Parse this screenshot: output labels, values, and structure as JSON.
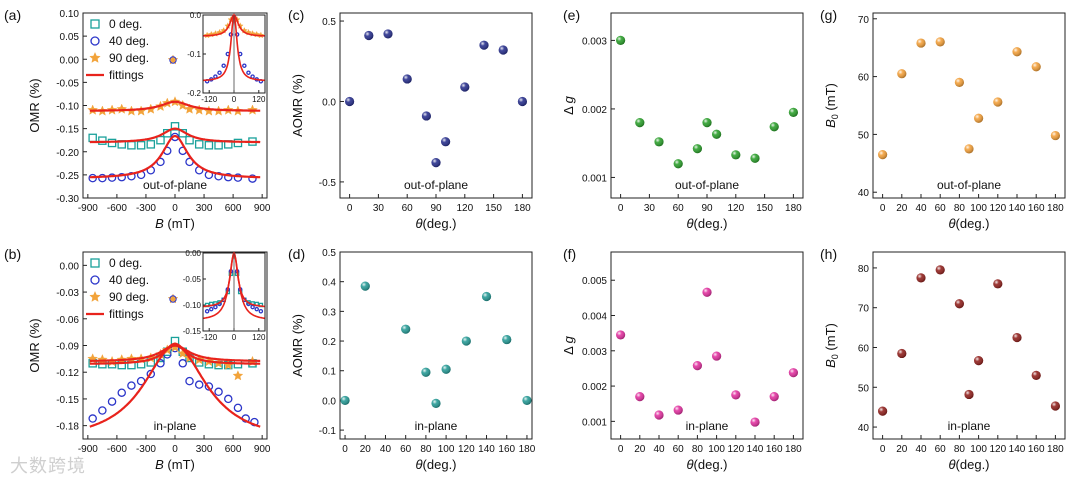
{
  "watermark": "大数跨境",
  "chart_data": [
    {
      "id": "a",
      "panel_label": "(a)",
      "type": "scatter",
      "xlabel_var": "B",
      "xlabel_unit": " (mT)",
      "ylabel": "OMR (%)",
      "xlim": [
        -950,
        950
      ],
      "ylim": [
        -0.3,
        0.1
      ],
      "xticks": [
        -900,
        -600,
        -300,
        0,
        300,
        600,
        900
      ],
      "xtick_labels": [
        "-900",
        "-600",
        "-300",
        "0",
        "300",
        "600",
        "900"
      ],
      "yticks": [
        0.1,
        0.05,
        0.0,
        -0.05,
        -0.1,
        -0.15,
        -0.2,
        -0.25,
        -0.3
      ],
      "ytick_labels": [
        "0.10",
        "0.05",
        "0.00",
        "-0.05",
        "-0.10",
        "-0.15",
        "-0.20",
        "-0.25",
        "-0.30"
      ],
      "annotation": "out-of-plane",
      "legend": [
        {
          "name": "0 deg.",
          "marker": "square",
          "color": "#1aa19b"
        },
        {
          "name": "40 deg.",
          "marker": "circle",
          "color": "#2b35c9"
        },
        {
          "name": "90 deg.",
          "marker": "star",
          "color": "#f2a33a"
        },
        {
          "name": "fittings",
          "marker": "line",
          "color": "#e8231c"
        }
      ],
      "series": [
        {
          "name": "0 deg.",
          "marker": "square",
          "color": "#1aa19b",
          "x": [
            -850,
            -750,
            -650,
            -550,
            -450,
            -350,
            -250,
            -150,
            -80,
            0,
            80,
            150,
            250,
            350,
            450,
            550,
            650,
            800
          ],
          "y": [
            -0.17,
            -0.176,
            -0.181,
            -0.184,
            -0.186,
            -0.186,
            -0.184,
            -0.175,
            -0.16,
            -0.145,
            -0.16,
            -0.175,
            -0.184,
            -0.186,
            -0.186,
            -0.184,
            -0.181,
            -0.178
          ]
        },
        {
          "name": "40 deg.",
          "marker": "circle",
          "color": "#2b35c9",
          "x": [
            -850,
            -750,
            -650,
            -550,
            -450,
            -350,
            -250,
            -150,
            -80,
            0,
            80,
            150,
            250,
            350,
            450,
            550,
            650,
            800
          ],
          "y": [
            -0.257,
            -0.257,
            -0.256,
            -0.255,
            -0.253,
            -0.25,
            -0.24,
            -0.222,
            -0.198,
            -0.168,
            -0.198,
            -0.222,
            -0.24,
            -0.25,
            -0.253,
            -0.255,
            -0.256,
            -0.258
          ]
        },
        {
          "name": "90 deg.",
          "marker": "star",
          "color": "#f2a33a",
          "x": [
            -850,
            -750,
            -650,
            -550,
            -450,
            -350,
            -250,
            -150,
            -80,
            0,
            80,
            150,
            250,
            350,
            450,
            550,
            650,
            800
          ],
          "y": [
            -0.11,
            -0.112,
            -0.11,
            -0.108,
            -0.112,
            -0.112,
            -0.108,
            -0.102,
            -0.095,
            -0.092,
            -0.1,
            -0.108,
            -0.11,
            -0.112,
            -0.112,
            -0.11,
            -0.112,
            -0.11
          ]
        }
      ],
      "fits": [
        {
          "base": -0.112,
          "amp": 0.02,
          "w": 180
        },
        {
          "base": -0.18,
          "amp": 0.03,
          "w": 160
        },
        {
          "base": -0.258,
          "amp": 0.092,
          "w": 160
        }
      ],
      "inset": {
        "xlim": [
          -150,
          150
        ],
        "ylim": [
          -0.2,
          0.0
        ],
        "xticks": [
          -120,
          0,
          120
        ],
        "xtick_labels": [
          "-120",
          "0",
          "120"
        ],
        "yticks": [
          0.0,
          -0.1,
          -0.2
        ],
        "ytick_labels": [
          "0.0",
          "-0.1",
          "-0.2"
        ],
        "fits": [
          {
            "base": -0.055,
            "amp": 0.055,
            "w": 25,
            "color": "#e8231c"
          },
          {
            "base": -0.17,
            "amp": 0.17,
            "w": 18,
            "color": "#e8231c"
          }
        ],
        "points": [
          {
            "marker": "star",
            "color": "#f2a33a",
            "x": [
              -130,
              -110,
              -90,
              -70,
              -50,
              -30,
              -15,
              15,
              30,
              50,
              70,
              90,
              110,
              130
            ],
            "y": [
              -0.052,
              -0.05,
              -0.048,
              -0.045,
              -0.04,
              -0.028,
              -0.012,
              -0.012,
              -0.028,
              -0.04,
              -0.045,
              -0.048,
              -0.05,
              -0.052
            ]
          },
          {
            "marker": "circle",
            "color": "#2b35c9",
            "x": [
              -130,
              -110,
              -90,
              -70,
              -50,
              -30,
              -15,
              15,
              30,
              50,
              70,
              90,
              110,
              130
            ],
            "y": [
              -0.17,
              -0.165,
              -0.158,
              -0.148,
              -0.13,
              -0.1,
              -0.05,
              -0.05,
              -0.1,
              -0.13,
              -0.148,
              -0.158,
              -0.165,
              -0.17
            ]
          }
        ]
      }
    },
    {
      "id": "b",
      "panel_label": "(b)",
      "type": "scatter",
      "xlabel_var": "B",
      "xlabel_unit": " (mT)",
      "ylabel": "OMR (%)",
      "xlim": [
        -950,
        950
      ],
      "ylim": [
        -0.195,
        0.015
      ],
      "xticks": [
        -900,
        -600,
        -300,
        0,
        300,
        600,
        900
      ],
      "xtick_labels": [
        "-900",
        "-600",
        "-300",
        "0",
        "300",
        "600",
        "900"
      ],
      "yticks": [
        0.0,
        -0.03,
        -0.06,
        -0.09,
        -0.12,
        -0.15,
        -0.18
      ],
      "ytick_labels": [
        "0.00",
        "-0.03",
        "-0.06",
        "-0.09",
        "-0.12",
        "-0.15",
        "-0.18"
      ],
      "annotation": "in-plane",
      "legend": [
        {
          "name": "0 deg.",
          "marker": "square",
          "color": "#1aa19b"
        },
        {
          "name": "40 deg.",
          "marker": "circle",
          "color": "#2b35c9"
        },
        {
          "name": "90 deg.",
          "marker": "star",
          "color": "#f2a33a"
        },
        {
          "name": "fittings",
          "marker": "line",
          "color": "#e8231c"
        }
      ],
      "series": [
        {
          "name": "0 deg.",
          "marker": "square",
          "color": "#1aa19b",
          "x": [
            -850,
            -750,
            -650,
            -550,
            -450,
            -350,
            -250,
            -150,
            -80,
            0,
            80,
            150,
            250,
            350,
            450,
            550,
            650,
            800
          ],
          "y": [
            -0.11,
            -0.111,
            -0.111,
            -0.112,
            -0.112,
            -0.111,
            -0.109,
            -0.104,
            -0.097,
            -0.085,
            -0.097,
            -0.104,
            -0.109,
            -0.111,
            -0.112,
            -0.112,
            -0.111,
            -0.11
          ]
        },
        {
          "name": "40 deg.",
          "marker": "circle",
          "color": "#2b35c9",
          "x": [
            -850,
            -750,
            -650,
            -550,
            -450,
            -350,
            -250,
            -150,
            -80,
            0,
            80,
            150,
            250,
            350,
            450,
            550,
            650,
            730,
            820
          ],
          "y": [
            -0.172,
            -0.163,
            -0.153,
            -0.143,
            -0.135,
            -0.13,
            -0.122,
            -0.11,
            -0.1,
            -0.093,
            -0.11,
            -0.13,
            -0.134,
            -0.136,
            -0.142,
            -0.15,
            -0.16,
            -0.172,
            -0.176
          ]
        },
        {
          "name": "90 deg.",
          "marker": "star",
          "color": "#f2a33a",
          "x": [
            -850,
            -750,
            -650,
            -550,
            -450,
            -350,
            -250,
            -150,
            -80,
            0,
            80,
            150,
            250,
            350,
            450,
            550,
            650,
            800
          ],
          "y": [
            -0.105,
            -0.106,
            -0.108,
            -0.106,
            -0.105,
            -0.105,
            -0.104,
            -0.1,
            -0.095,
            -0.092,
            -0.099,
            -0.104,
            -0.106,
            -0.108,
            -0.11,
            -0.112,
            -0.124,
            -0.108
          ]
        }
      ],
      "fits": [
        {
          "base": -0.108,
          "amp": 0.018,
          "w": 180
        },
        {
          "base": -0.111,
          "amp": 0.023,
          "w": 140
        },
        {
          "base": -0.2,
          "amp": 0.11,
          "w": 400
        }
      ],
      "inset": {
        "xlim": [
          -150,
          150
        ],
        "ylim": [
          -0.15,
          0.0
        ],
        "xticks": [
          -120,
          0,
          120
        ],
        "xtick_labels": [
          "-120",
          "0",
          "120"
        ],
        "yticks": [
          0.0,
          -0.05,
          -0.1,
          -0.15
        ],
        "ytick_labels": [
          "0.00",
          "-0.05",
          "-0.10",
          "-0.15"
        ],
        "fits": [
          {
            "base": -0.105,
            "amp": 0.105,
            "w": 22,
            "color": "#e8231c"
          },
          {
            "base": -0.13,
            "amp": 0.128,
            "w": 28,
            "color": "#e8231c"
          }
        ],
        "points": [
          {
            "marker": "square",
            "color": "#1aa19b",
            "x": [
              -130,
              -110,
              -90,
              -70,
              -50,
              -30,
              -15,
              15,
              30,
              50,
              70,
              90,
              110,
              130
            ],
            "y": [
              -0.1,
              -0.098,
              -0.097,
              -0.095,
              -0.09,
              -0.075,
              -0.04,
              -0.04,
              -0.075,
              -0.09,
              -0.095,
              -0.097,
              -0.098,
              -0.1
            ]
          },
          {
            "marker": "circle",
            "color": "#2b35c9",
            "x": [
              -130,
              -110,
              -90,
              -70,
              -50,
              -30,
              -15,
              15,
              30,
              50,
              70,
              90,
              110,
              130
            ],
            "y": [
              -0.112,
              -0.108,
              -0.104,
              -0.098,
              -0.09,
              -0.07,
              -0.035,
              -0.035,
              -0.07,
              -0.09,
              -0.098,
              -0.104,
              -0.108,
              -0.112
            ]
          }
        ]
      }
    },
    {
      "id": "c",
      "panel_label": "(c)",
      "type": "scatter",
      "ylabel": "AOMR (%)",
      "xlabel_var": "θ",
      "xlabel_unit": "(deg.)",
      "xlim": [
        -10,
        190
      ],
      "ylim": [
        -0.6,
        0.55
      ],
      "xticks": [
        0,
        30,
        60,
        90,
        120,
        150,
        180
      ],
      "xtick_labels": [
        "0",
        "30",
        "60",
        "90",
        "120",
        "150",
        "180"
      ],
      "yticks": [
        0.5,
        0.0,
        -0.5
      ],
      "ytick_labels": [
        "0.5",
        "0.0",
        "-0.5"
      ],
      "annotation": "out-of-plane",
      "color": "#1b2386",
      "x": [
        0,
        20,
        40,
        60,
        80,
        90,
        100,
        120,
        140,
        160,
        180
      ],
      "y": [
        0.0,
        0.41,
        0.42,
        0.14,
        -0.09,
        -0.38,
        -0.25,
        0.09,
        0.35,
        0.32,
        0.0
      ]
    },
    {
      "id": "d",
      "panel_label": "(d)",
      "type": "scatter",
      "ylabel": "AOMR (%)",
      "xlabel_var": "θ",
      "xlabel_unit": "(deg.)",
      "xlim": [
        -5,
        185
      ],
      "ylim": [
        -0.13,
        0.5
      ],
      "xticks": [
        0,
        20,
        40,
        60,
        80,
        100,
        120,
        140,
        160,
        180
      ],
      "xtick_labels": [
        "0",
        "20",
        "40",
        "60",
        "80",
        "100",
        "120",
        "140",
        "160",
        "180"
      ],
      "yticks": [
        0.5,
        0.4,
        0.3,
        0.2,
        0.1,
        0.0,
        -0.1
      ],
      "ytick_labels": [
        "0.5",
        "0.4",
        "0.3",
        "0.2",
        "0.1",
        "0.0",
        "-0.1"
      ],
      "annotation": "in-plane",
      "color": "#1a9590",
      "x": [
        0,
        20,
        60,
        80,
        90,
        100,
        120,
        140,
        160,
        180
      ],
      "y": [
        0.0,
        0.385,
        0.24,
        0.095,
        -0.01,
        0.105,
        0.2,
        0.35,
        0.205,
        0.0
      ]
    },
    {
      "id": "e",
      "panel_label": "(e)",
      "type": "scatter",
      "ylabel": "Δ g",
      "xlabel_var": "θ",
      "xlabel_unit": "(deg.)",
      "xlim": [
        -10,
        190
      ],
      "ylim": [
        0.0007,
        0.0034
      ],
      "xticks": [
        0,
        30,
        60,
        90,
        120,
        150,
        180
      ],
      "xtick_labels": [
        "0",
        "30",
        "60",
        "90",
        "120",
        "150",
        "180"
      ],
      "yticks": [
        0.003,
        0.002,
        0.001
      ],
      "ytick_labels": [
        "0.003",
        "0.002",
        "0.001"
      ],
      "annotation": "out-of-plane",
      "color": "#1f9a1f",
      "x": [
        0,
        20,
        40,
        60,
        80,
        90,
        100,
        120,
        140,
        160,
        180
      ],
      "y": [
        0.003,
        0.0018,
        0.00152,
        0.0012,
        0.00142,
        0.0018,
        0.00163,
        0.00133,
        0.00128,
        0.00174,
        0.00195
      ]
    },
    {
      "id": "f",
      "panel_label": "(f)",
      "type": "scatter",
      "ylabel": "Δ g",
      "xlabel_var": "θ",
      "xlabel_unit": "(deg.)",
      "xlim": [
        -10,
        190
      ],
      "ylim": [
        0.0005,
        0.0058
      ],
      "xticks": [
        0,
        20,
        40,
        60,
        80,
        100,
        120,
        140,
        160,
        180
      ],
      "xtick_labels": [
        "0",
        "20",
        "40",
        "60",
        "80",
        "100",
        "120",
        "140",
        "160",
        "180"
      ],
      "yticks": [
        0.005,
        0.004,
        0.003,
        0.002,
        0.001
      ],
      "ytick_labels": [
        "0.005",
        "0.004",
        "0.003",
        "0.002",
        "0.001"
      ],
      "annotation": "in-plane",
      "color": "#e0259a",
      "x": [
        0,
        20,
        40,
        60,
        80,
        90,
        100,
        120,
        140,
        160,
        180
      ],
      "y": [
        0.00345,
        0.0017,
        0.00118,
        0.00132,
        0.00258,
        0.00466,
        0.00285,
        0.00175,
        0.00098,
        0.0017,
        0.00238
      ]
    },
    {
      "id": "g",
      "panel_label": "(g)",
      "type": "scatter",
      "ylabel_main": "B",
      "ylabel_sub": "0",
      "ylabel_unit": " (mT)",
      "xlabel_var": "θ",
      "xlabel_unit": "(deg.)",
      "xlim": [
        -10,
        190
      ],
      "ylim": [
        39,
        71
      ],
      "xticks": [
        0,
        20,
        40,
        60,
        80,
        100,
        120,
        140,
        160,
        180
      ],
      "xtick_labels": [
        "0",
        "20",
        "40",
        "60",
        "80",
        "100",
        "120",
        "140",
        "160",
        "180"
      ],
      "yticks": [
        70,
        60,
        50,
        40
      ],
      "ytick_labels": [
        "70",
        "60",
        "50",
        "40"
      ],
      "annotation": "out-of-plane",
      "color": "#f29a2e",
      "x": [
        0,
        20,
        40,
        60,
        80,
        90,
        100,
        120,
        140,
        160,
        180
      ],
      "y": [
        46.5,
        60.5,
        65.8,
        66.0,
        59.0,
        47.5,
        52.8,
        55.6,
        64.3,
        61.7,
        49.8
      ]
    },
    {
      "id": "h",
      "panel_label": "(h)",
      "type": "scatter",
      "ylabel_main": "B",
      "ylabel_sub": "0",
      "ylabel_unit": " (mT)",
      "xlabel_var": "θ",
      "xlabel_unit": "(deg.)",
      "xlim": [
        -10,
        190
      ],
      "ylim": [
        37,
        84
      ],
      "xticks": [
        0,
        20,
        40,
        60,
        80,
        100,
        120,
        140,
        160,
        180
      ],
      "xtick_labels": [
        "0",
        "20",
        "40",
        "60",
        "80",
        "100",
        "120",
        "140",
        "160",
        "180"
      ],
      "yticks": [
        80,
        70,
        60,
        50,
        40
      ],
      "ytick_labels": [
        "80",
        "70",
        "60",
        "50",
        "40"
      ],
      "annotation": "in-plane",
      "color": "#8b1410",
      "x": [
        0,
        20,
        40,
        60,
        80,
        90,
        100,
        120,
        140,
        160,
        180
      ],
      "y": [
        44.0,
        58.5,
        77.5,
        79.5,
        71.0,
        48.2,
        56.7,
        76.0,
        62.5,
        53.0,
        45.3
      ]
    }
  ]
}
